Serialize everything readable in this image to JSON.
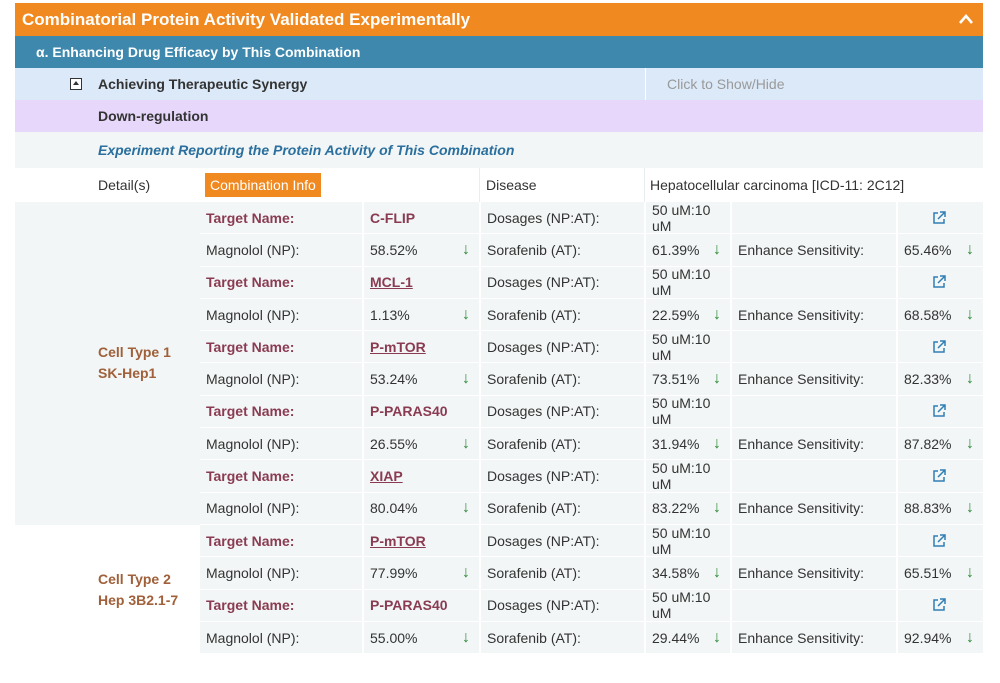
{
  "header": {
    "title": "Combinatorial Protein Activity Validated Experimentally",
    "collapse_icon": "chevron-up-icon"
  },
  "section": {
    "title": "α. Enhancing Drug Efficacy by This Combination"
  },
  "synergy": {
    "title": "Achieving Therapeutic Synergy",
    "toggle_label": "Click to Show/Hide",
    "icon": "collapse-box-icon"
  },
  "regulation": {
    "label": "Down-regulation"
  },
  "experiment": {
    "title": "Experiment Reporting the Protein Activity of This Combination"
  },
  "details": {
    "label": "Detail(s)",
    "combo_button": "Combination Info",
    "disease_label": "Disease",
    "disease_value": "Hepatocellular carcinoma [ICD-11: 2C12]"
  },
  "labels": {
    "target_name": "Target Name:",
    "dosages": "Dosages (NP:AT):",
    "np": "Magnolol (NP):",
    "at": "Sorafenib (AT):",
    "enhance": "Enhance Sensitivity:",
    "arrow": "↓"
  },
  "cell_types": [
    {
      "line1": "Cell Type 1",
      "line2": "SK-Hep1",
      "targets": [
        {
          "name": "C-FLIP",
          "link": false,
          "dosage": "50 uM:10 uM",
          "np": "58.52%",
          "at": "61.39%",
          "enhance": "65.46%"
        },
        {
          "name": "MCL-1",
          "link": true,
          "dosage": "50 uM:10 uM",
          "np": "1.13%",
          "at": "22.59%",
          "enhance": "68.58%"
        },
        {
          "name": "P-mTOR",
          "link": true,
          "dosage": "50 uM:10 uM",
          "np": "53.24%",
          "at": "73.51%",
          "enhance": "82.33%"
        },
        {
          "name": "P-PARAS40",
          "link": false,
          "dosage": "50 uM:10 uM",
          "np": "26.55%",
          "at": "31.94%",
          "enhance": "87.82%"
        },
        {
          "name": "XIAP",
          "link": true,
          "dosage": "50 uM:10 uM",
          "np": "80.04%",
          "at": "83.22%",
          "enhance": "88.83%"
        }
      ]
    },
    {
      "line1": "Cell Type 2",
      "line2": "Hep 3B2.1-7",
      "targets": [
        {
          "name": "P-mTOR",
          "link": true,
          "dosage": "50 uM:10 uM",
          "np": "77.99%",
          "at": "34.58%",
          "enhance": "65.51%"
        },
        {
          "name": "P-PARAS40",
          "link": false,
          "dosage": "50 uM:10 uM",
          "np": "55.00%",
          "at": "29.44%",
          "enhance": "92.94%"
        }
      ]
    }
  ]
}
